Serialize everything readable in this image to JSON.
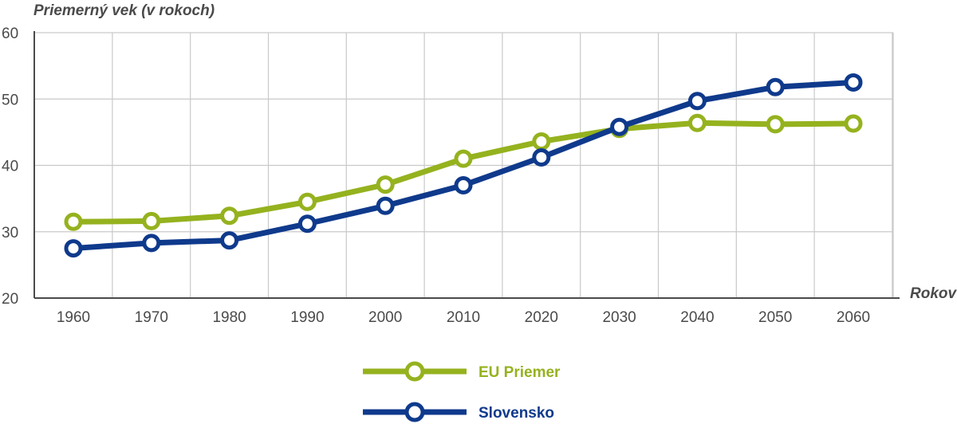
{
  "colors": {
    "eu": "#95b21e",
    "sk": "#0f3a8c",
    "grid": "#c9c9c9",
    "axis": "#4a4a4a"
  },
  "chart_data": {
    "type": "line",
    "title": "",
    "ylabel": "Priemerný vek (v rokoch)",
    "xlabel": "Rokov",
    "x": [
      1960,
      1970,
      1980,
      1990,
      2000,
      2010,
      2020,
      2030,
      2040,
      2050,
      2060
    ],
    "ylim": [
      20,
      60
    ],
    "yticks": [
      20,
      30,
      40,
      50,
      60
    ],
    "grid": true,
    "legend_position": "bottom-center",
    "series": [
      {
        "key": "eu",
        "name": "EU Priemer",
        "values": [
          31.5,
          31.6,
          32.4,
          34.5,
          37.1,
          41.0,
          43.6,
          45.5,
          46.4,
          46.2,
          46.3
        ]
      },
      {
        "key": "sk",
        "name": "Slovensko",
        "values": [
          27.5,
          28.3,
          28.7,
          31.2,
          33.9,
          37.0,
          41.2,
          45.8,
          49.7,
          51.8,
          52.5
        ]
      }
    ]
  }
}
